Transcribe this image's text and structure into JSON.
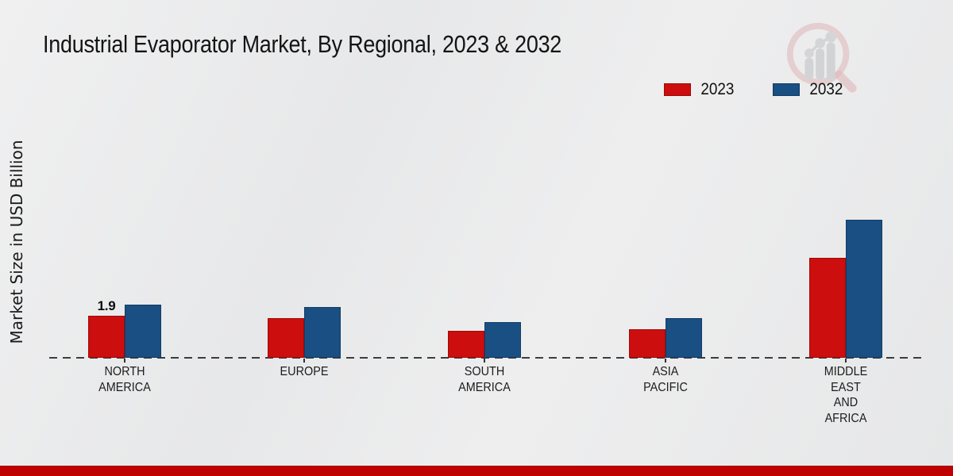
{
  "title": "Industrial Evaporator Market, By Regional, 2023 & 2032",
  "y_axis_label": "Market Size in USD Billion",
  "legend": {
    "items": [
      {
        "label": "2023",
        "color": "#cc0e0e"
      },
      {
        "label": "2032",
        "color": "#194f82"
      }
    ]
  },
  "footer": {
    "accent_band_color": "#c00101"
  },
  "branding": {
    "watermark_icon": "magnifier-bar-chart-logo"
  },
  "chart_data": {
    "type": "bar",
    "title": "Industrial Evaporator Market, By Regional, 2023 & 2032",
    "ylabel": "Market Size in USD Billion",
    "xlabel": "",
    "categories": [
      "North America",
      "Europe",
      "South America",
      "Asia Pacific",
      "Middle East and Africa"
    ],
    "category_label_lines": [
      [
        "NORTH",
        "AMERICA"
      ],
      [
        "EUROPE"
      ],
      [
        "SOUTH",
        "AMERICA"
      ],
      [
        "ASIA",
        "PACIFIC"
      ],
      [
        "MIDDLE",
        "EAST",
        "AND",
        "AFRICA"
      ]
    ],
    "series": [
      {
        "name": "2023",
        "color": "#cc0e0e",
        "values": [
          1.9,
          1.8,
          1.2,
          1.3,
          4.5
        ],
        "data_labels": [
          "1.9",
          "",
          "",
          "",
          ""
        ]
      },
      {
        "name": "2032",
        "color": "#194f82",
        "values": [
          2.4,
          2.3,
          1.6,
          1.8,
          6.2
        ],
        "data_labels": [
          "",
          "",
          "",
          "",
          ""
        ]
      }
    ],
    "ylim": [
      0,
      7
    ],
    "grid": false,
    "baseline": "dashed zero line only",
    "legend_position": "top-right"
  }
}
